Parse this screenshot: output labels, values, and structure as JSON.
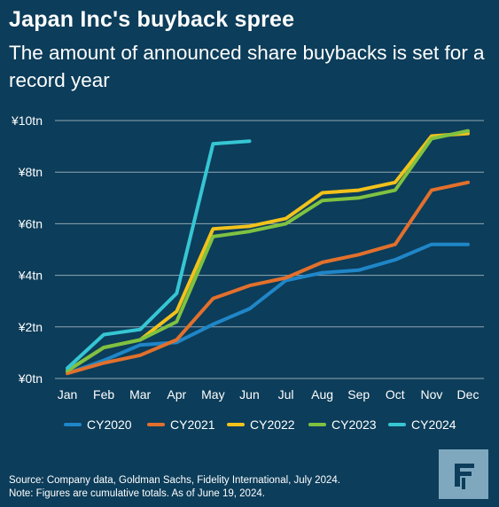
{
  "header": {
    "title": "Japan Inc's buyback spree",
    "subtitle": "The amount of announced share buybacks is set for a record year"
  },
  "footer": {
    "source": "Source: Company data, Goldman Sachs, Fidelity International, July 2024.",
    "note": "Note: Figures are cumulative totals. As of June 19, 2024."
  },
  "logo": {
    "icon": "fidelity-logo-icon"
  },
  "colors": {
    "background": "#0c3d5a",
    "grid": "#ffffff"
  },
  "chart_data": {
    "type": "line",
    "title": "Japan Inc's buyback spree",
    "subtitle": "The amount of announced share buybacks is set for a record year",
    "categories": [
      "Jan",
      "Feb",
      "Mar",
      "Apr",
      "May",
      "Jun",
      "Jul",
      "Aug",
      "Sep",
      "Oct",
      "Nov",
      "Dec"
    ],
    "y_ticks": [
      0,
      2,
      4,
      6,
      8,
      10
    ],
    "y_tick_labels": [
      "¥0tn",
      "¥2tn",
      "¥4tn",
      "¥6tn",
      "¥8tn",
      "¥10tn"
    ],
    "ylim": [
      0,
      10
    ],
    "grid": true,
    "legend_position": "bottom",
    "series": [
      {
        "name": "CY2020",
        "color": "#1f86c8",
        "values": [
          0.2,
          0.7,
          1.3,
          1.4,
          2.1,
          2.7,
          3.8,
          4.1,
          4.2,
          4.6,
          5.2,
          5.2
        ]
      },
      {
        "name": "CY2021",
        "color": "#e2702c",
        "values": [
          0.2,
          0.6,
          0.9,
          1.5,
          3.1,
          3.6,
          3.9,
          4.5,
          4.8,
          5.2,
          7.3,
          7.6
        ]
      },
      {
        "name": "CY2022",
        "color": "#f2c21b",
        "values": [
          0.3,
          1.2,
          1.5,
          2.6,
          5.8,
          5.9,
          6.2,
          7.2,
          7.3,
          7.6,
          9.4,
          9.5
        ]
      },
      {
        "name": "CY2023",
        "color": "#7fc241",
        "values": [
          0.3,
          1.2,
          1.5,
          2.2,
          5.5,
          5.7,
          6.0,
          6.9,
          7.0,
          7.3,
          9.3,
          9.6
        ]
      },
      {
        "name": "CY2024",
        "color": "#36c6d3",
        "values": [
          0.4,
          1.7,
          1.9,
          3.3,
          9.1,
          9.2,
          null,
          null,
          null,
          null,
          null,
          null
        ]
      }
    ]
  }
}
